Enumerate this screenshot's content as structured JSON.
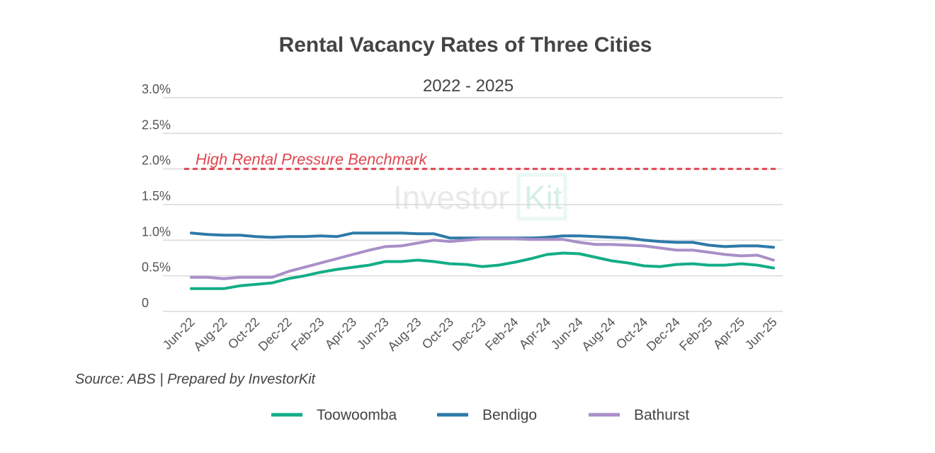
{
  "chart_data": {
    "type": "line",
    "title": "Rental Vacancy Rates of Three Cities",
    "subtitle": "2022 - 2025",
    "xlabel": "",
    "ylabel": "",
    "ylim": [
      0,
      3.0
    ],
    "y_ticks": [
      "0",
      "0.5%",
      "1.0%",
      "1.5%",
      "2.0%",
      "2.5%",
      "3.0%"
    ],
    "x_tick_labels": [
      "Jun-22",
      "Aug-22",
      "Oct-22",
      "Dec-22",
      "Feb-23",
      "Apr-23",
      "Jun-23",
      "Aug-23",
      "Oct-23",
      "Dec-23",
      "Feb-24",
      "Apr-24",
      "Jun-24",
      "Aug-24",
      "Oct-24",
      "Dec-24",
      "Feb-25",
      "Apr-25",
      "Jun-25"
    ],
    "x": [
      "Jun-22",
      "Jul-22",
      "Aug-22",
      "Sep-22",
      "Oct-22",
      "Nov-22",
      "Dec-22",
      "Jan-23",
      "Feb-23",
      "Mar-23",
      "Apr-23",
      "May-23",
      "Jun-23",
      "Jul-23",
      "Aug-23",
      "Sep-23",
      "Oct-23",
      "Nov-23",
      "Dec-23",
      "Jan-24",
      "Feb-24",
      "Mar-24",
      "Apr-24",
      "May-24",
      "Jun-24",
      "Jul-24",
      "Aug-24",
      "Sep-24",
      "Oct-24",
      "Nov-24",
      "Dec-24",
      "Jan-25",
      "Feb-25",
      "Mar-25",
      "Apr-25",
      "May-25",
      "Jun-25"
    ],
    "series": [
      {
        "name": "Toowoomba",
        "color": "#13ad87",
        "values": [
          0.32,
          0.32,
          0.32,
          0.36,
          0.38,
          0.4,
          0.46,
          0.5,
          0.55,
          0.59,
          0.62,
          0.65,
          0.7,
          0.7,
          0.72,
          0.7,
          0.67,
          0.66,
          0.63,
          0.65,
          0.69,
          0.74,
          0.8,
          0.82,
          0.81,
          0.76,
          0.71,
          0.68,
          0.64,
          0.63,
          0.66,
          0.67,
          0.65,
          0.65,
          0.67,
          0.65,
          0.61
        ]
      },
      {
        "name": "Bendigo",
        "color": "#2e7aa8",
        "values": [
          1.1,
          1.08,
          1.07,
          1.07,
          1.05,
          1.04,
          1.05,
          1.05,
          1.06,
          1.05,
          1.1,
          1.1,
          1.1,
          1.1,
          1.09,
          1.09,
          1.03,
          1.03,
          1.03,
          1.03,
          1.03,
          1.03,
          1.04,
          1.06,
          1.06,
          1.05,
          1.04,
          1.03,
          1.0,
          0.98,
          0.97,
          0.97,
          0.93,
          0.91,
          0.92,
          0.92,
          0.9
        ]
      },
      {
        "name": "Bathurst",
        "color": "#a98fc8",
        "values": [
          0.48,
          0.48,
          0.46,
          0.48,
          0.48,
          0.48,
          0.56,
          0.62,
          0.68,
          0.74,
          0.8,
          0.86,
          0.91,
          0.92,
          0.96,
          1.0,
          0.98,
          1.0,
          1.02,
          1.02,
          1.02,
          1.01,
          1.01,
          1.01,
          0.97,
          0.94,
          0.94,
          0.93,
          0.92,
          0.89,
          0.86,
          0.86,
          0.83,
          0.8,
          0.78,
          0.79,
          0.72
        ]
      }
    ],
    "benchmark": {
      "label": "High Rental Pressure Benchmark",
      "value": 2.0,
      "color": "#e0464f"
    },
    "grid": true,
    "legend_position": "bottom"
  },
  "source": "Source: ABS | Prepared by InvestorKit",
  "watermark": "InvestorKit"
}
